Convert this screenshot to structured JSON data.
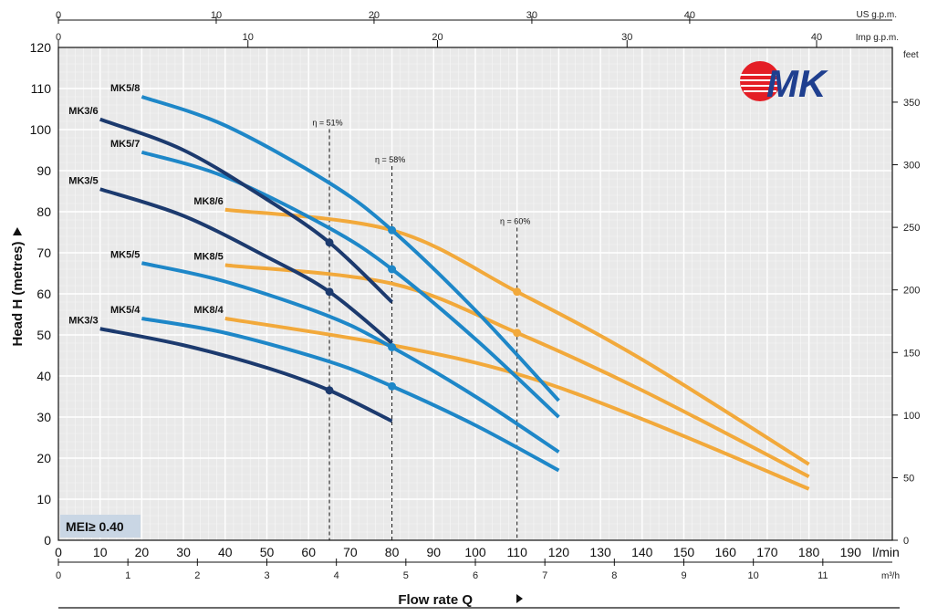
{
  "chart_data": {
    "type": "line",
    "xlabel": "Flow rate  Q",
    "ylabel": "Head H  (metres)",
    "x_unit": "l/min",
    "xlim": [
      0,
      200
    ],
    "ylim": [
      0,
      120
    ],
    "x_ticks": [
      "0",
      "10",
      "20",
      "30",
      "40",
      "50",
      "60",
      "70",
      "80",
      "90",
      "100",
      "110",
      "120",
      "130",
      "140",
      "150",
      "160",
      "170",
      "180",
      "190",
      "l/min"
    ],
    "y_ticks": [
      "0",
      "10",
      "20",
      "30",
      "40",
      "50",
      "60",
      "70",
      "80",
      "90",
      "100",
      "110",
      "120"
    ],
    "grid": true,
    "secondary_axes": {
      "us_gpm": {
        "label": "US g.p.m.",
        "ticks": [
          "0",
          "10",
          "20",
          "30",
          "40"
        ]
      },
      "imp_gpm": {
        "label": "Imp g.p.m.",
        "ticks": [
          "0",
          "10",
          "20",
          "30",
          "40"
        ]
      },
      "m3h": {
        "label": "m³/h",
        "ticks": [
          "0",
          "1",
          "2",
          "3",
          "4",
          "5",
          "6",
          "7",
          "8",
          "9",
          "10",
          "11"
        ]
      },
      "feet": {
        "label": "feet",
        "ticks": [
          "0",
          "50",
          "100",
          "150",
          "200",
          "250",
          "300",
          "350"
        ]
      }
    },
    "series": [
      {
        "name": "MK3/6",
        "color": "#1c3a6e",
        "x": [
          10,
          30,
          50,
          65,
          80
        ],
        "y": [
          102.5,
          95,
          83,
          72.5,
          58
        ]
      },
      {
        "name": "MK3/5",
        "color": "#1c3a6e",
        "x": [
          10,
          30,
          50,
          65,
          80
        ],
        "y": [
          85.5,
          79,
          69,
          60.5,
          48
        ]
      },
      {
        "name": "MK3/3",
        "color": "#1c3a6e",
        "x": [
          10,
          30,
          50,
          65,
          80
        ],
        "y": [
          51.5,
          47.5,
          42,
          36.5,
          29
        ]
      },
      {
        "name": "MK5/8",
        "color": "#1e87c8",
        "x": [
          20,
          40,
          65,
          80,
          100,
          120
        ],
        "y": [
          108,
          101,
          87,
          75.5,
          56,
          34
        ]
      },
      {
        "name": "MK5/7",
        "color": "#1e87c8",
        "x": [
          20,
          40,
          65,
          80,
          100,
          120
        ],
        "y": [
          94.5,
          88.5,
          76,
          66,
          49,
          30
        ]
      },
      {
        "name": "MK5/5",
        "color": "#1e87c8",
        "x": [
          20,
          40,
          65,
          80,
          100,
          120
        ],
        "y": [
          67.5,
          63,
          54.5,
          47,
          35,
          21.5
        ]
      },
      {
        "name": "MK5/4",
        "color": "#1e87c8",
        "x": [
          20,
          40,
          65,
          80,
          100,
          120
        ],
        "y": [
          54,
          50.5,
          43.5,
          37.5,
          28,
          17
        ]
      },
      {
        "name": "MK8/6",
        "color": "#f2a93b",
        "x": [
          40,
          80,
          110,
          140,
          180
        ],
        "y": [
          80.5,
          75.5,
          60.5,
          44,
          18.5
        ]
      },
      {
        "name": "MK8/5",
        "color": "#f2a93b",
        "x": [
          40,
          80,
          110,
          140,
          180
        ],
        "y": [
          67,
          62.5,
          50.5,
          36.5,
          15.5
        ]
      },
      {
        "name": "MK8/4",
        "color": "#f2a93b",
        "x": [
          40,
          80,
          110,
          140,
          180
        ],
        "y": [
          54,
          47.5,
          40.5,
          29.5,
          12.5
        ]
      }
    ],
    "markers": [
      {
        "series": "MK3/6",
        "x": 65,
        "y": 72.5
      },
      {
        "series": "MK3/5",
        "x": 65,
        "y": 60.5
      },
      {
        "series": "MK3/3",
        "x": 65,
        "y": 36.5
      },
      {
        "series": "MK5/8",
        "x": 80,
        "y": 75.5
      },
      {
        "series": "MK5/7",
        "x": 80,
        "y": 66
      },
      {
        "series": "MK5/5",
        "x": 80,
        "y": 47
      },
      {
        "series": "MK5/4",
        "x": 80,
        "y": 37.5
      },
      {
        "series": "MK8/6",
        "x": 110,
        "y": 60.5
      },
      {
        "series": "MK8/5",
        "x": 110,
        "y": 50.5
      }
    ],
    "efficiency_lines": [
      {
        "label": "η = 51%",
        "x": 65,
        "y_top": 101
      },
      {
        "label": "η = 58%",
        "x": 80,
        "y_top": 92
      },
      {
        "label": "η = 60%",
        "x": 110,
        "y_top": 77
      }
    ],
    "annotations": {
      "mei": "MEI≥ 0.40",
      "logo": "MK"
    }
  }
}
